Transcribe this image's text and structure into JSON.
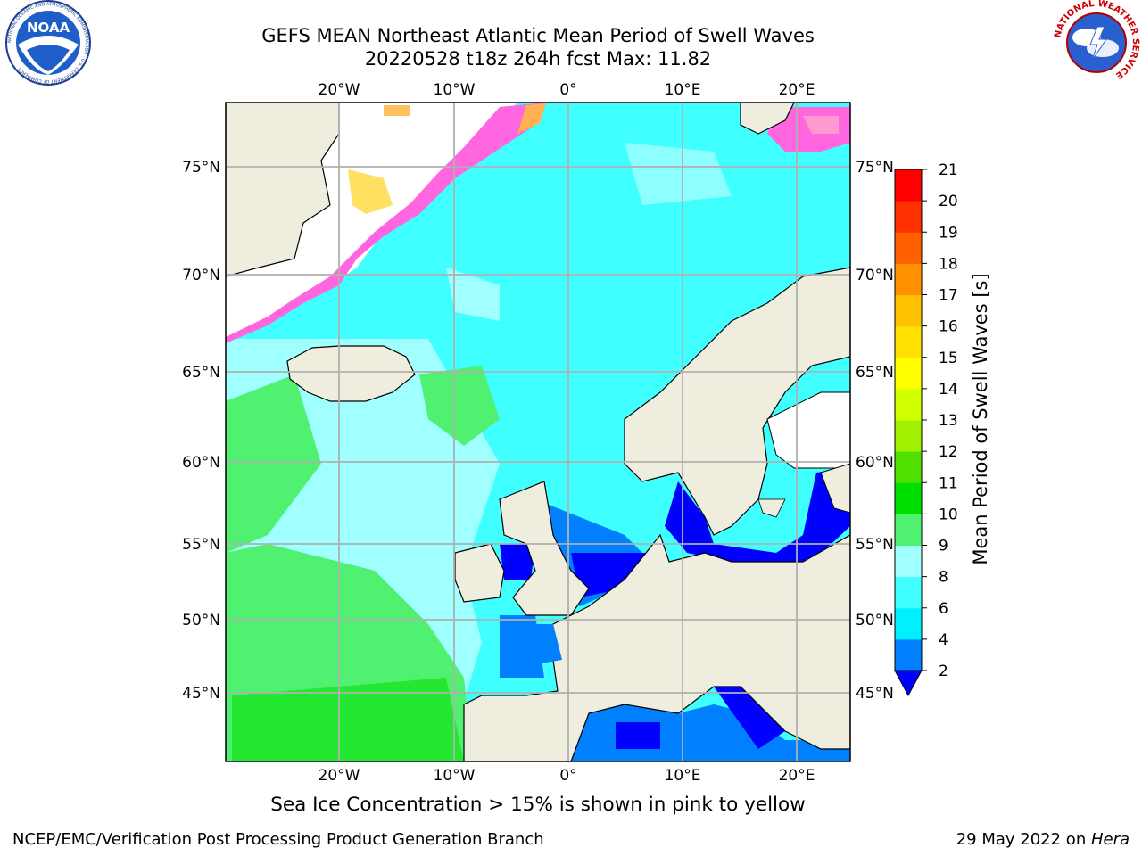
{
  "header": {
    "title_line1": "GEFS MEAN Northeast Atlantic Mean Period of Swell Waves",
    "title_line2": "20220528 t18z 264h fcst   Max: 11.82"
  },
  "logos": {
    "left": "NOAA",
    "left_ring_text": "NATIONAL OCEANIC AND ATMOSPHERIC ADMINISTRATION · U.S. DEPARTMENT OF COMMERCE",
    "right_ring_text": "NATIONAL WEATHER SERVICE"
  },
  "map": {
    "lon_labels": [
      "20°W",
      "10°W",
      "0°",
      "10°E",
      "20°E"
    ],
    "lat_labels": [
      "75°N",
      "70°N",
      "65°N",
      "60°N",
      "55°N",
      "50°N",
      "45°N"
    ],
    "colors": {
      "land": "#efedde",
      "frame": "#000000",
      "grid": "#b0b0b0"
    }
  },
  "colorbar": {
    "label": "Mean Period of Swell Waves [s]",
    "ticks": [
      "2",
      "4",
      "6",
      "8",
      "9",
      "10",
      "11",
      "12",
      "13",
      "14",
      "15",
      "16",
      "17",
      "18",
      "19",
      "20",
      "21"
    ],
    "colors": [
      "#0000ff",
      "#0080ff",
      "#00f0ff",
      "#40ffff",
      "#a0ffff",
      "#50f070",
      "#00e000",
      "#50e000",
      "#a0f000",
      "#d0ff00",
      "#ffff00",
      "#ffe000",
      "#ffc000",
      "#ff9000",
      "#ff6000",
      "#ff3000",
      "#ff0000"
    ]
  },
  "caption": "Sea Ice Concentration > 15% is shown in pink to yellow",
  "footer": {
    "left": "NCEP/EMC/Verification Post Processing Product Generation Branch",
    "right_date": "29 May 2022 on ",
    "right_host": "Hera"
  }
}
